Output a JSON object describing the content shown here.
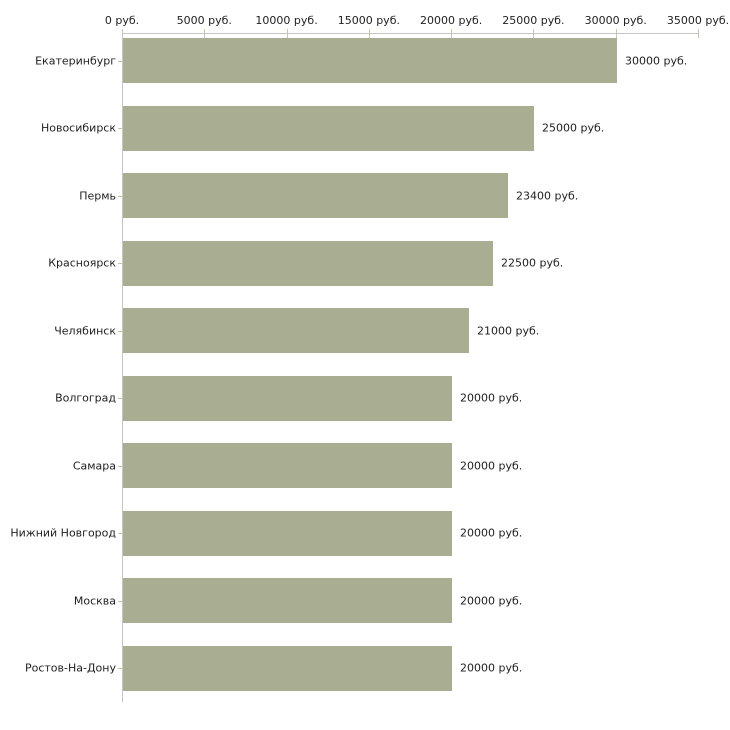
{
  "chart_data": {
    "type": "bar",
    "orientation": "horizontal",
    "title": "",
    "xlabel": "",
    "ylabel": "",
    "categories": [
      "Екатеринбург",
      "Новосибирск",
      "Пермь",
      "Красноярск",
      "Челябинск",
      "Волгоград",
      "Самара",
      "Нижний Новгород",
      "Москва",
      "Ростов-На-Дону"
    ],
    "values": [
      30000,
      25000,
      23400,
      22500,
      21000,
      20000,
      20000,
      20000,
      20000,
      20000
    ],
    "value_labels": [
      "30000 руб.",
      "25000 руб.",
      "23400 руб.",
      "22500 руб.",
      "21000 руб.",
      "20000 руб.",
      "20000 руб.",
      "20000 руб.",
      "20000 руб.",
      "20000 руб."
    ],
    "x_axis": {
      "min": 0,
      "max": 35000,
      "tick_step": 5000,
      "tick_values": [
        0,
        5000,
        10000,
        15000,
        20000,
        25000,
        30000,
        35000
      ],
      "tick_labels": [
        "0 руб.",
        "5000 руб.",
        "10000 руб.",
        "15000 руб.",
        "20000 руб.",
        "25000 руб.",
        "30000 руб.",
        "35000 руб."
      ],
      "position": "top"
    },
    "grid": false,
    "legend": false,
    "colors": {
      "bar_fill": "#a9ae93",
      "axis_line": "#c6c6c6",
      "tick_mark": "#c3c8a6",
      "text": "#1f1f1f",
      "background": "#ffffff"
    }
  }
}
